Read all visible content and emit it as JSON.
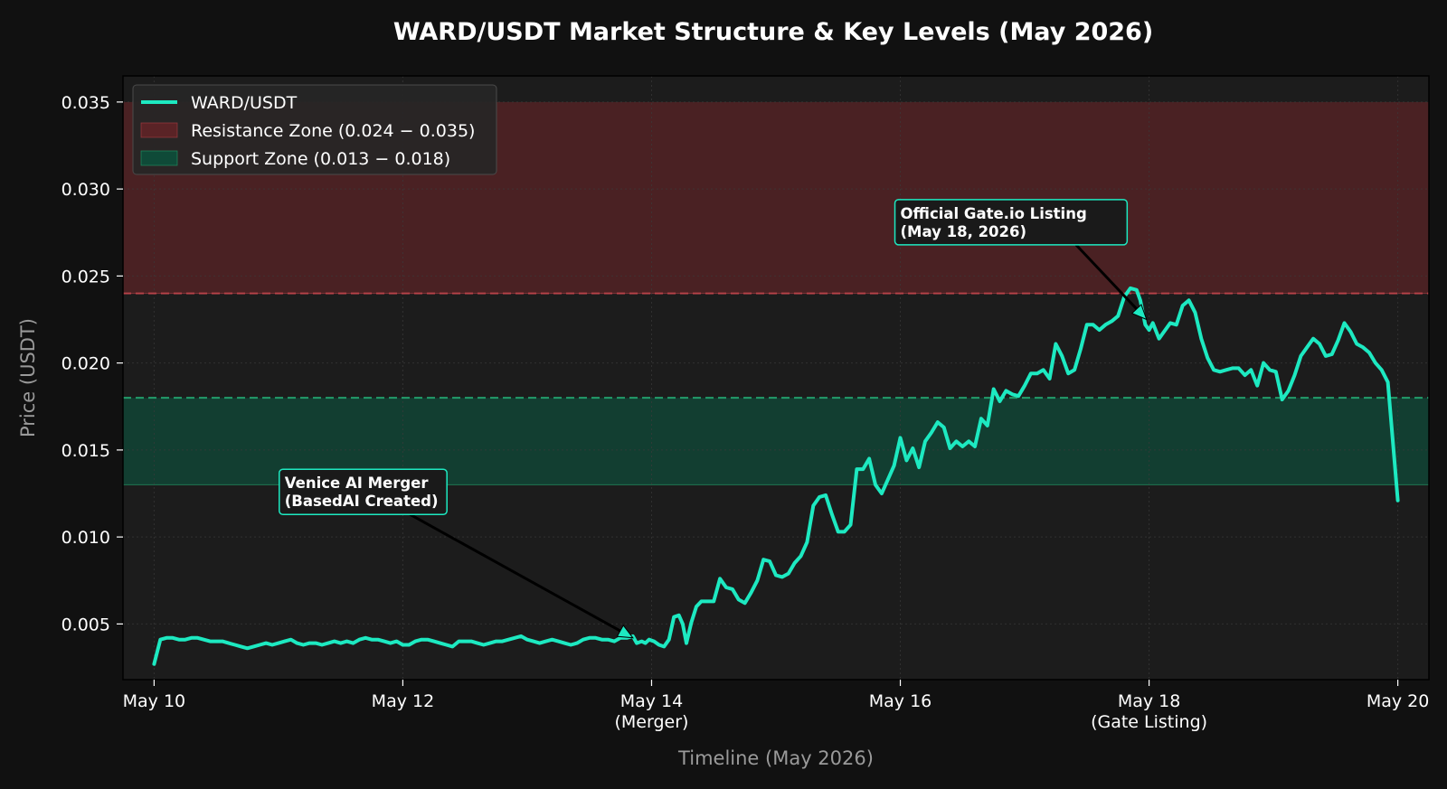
{
  "chart_data": {
    "type": "line",
    "title": "WARD/USDT Market Structure & Key Levels (May 2026)",
    "xlabel": "Timeline (May 2026)",
    "ylabel": "Price (USDT)",
    "xlim": [
      9.75,
      20.25
    ],
    "ylim": [
      0.0018,
      0.0365
    ],
    "x_ticks": [
      {
        "value": 10,
        "label": "May 10",
        "sublabel": ""
      },
      {
        "value": 12,
        "label": "May 12",
        "sublabel": ""
      },
      {
        "value": 14,
        "label": "May 14",
        "sublabel": "(Merger)"
      },
      {
        "value": 16,
        "label": "May 16",
        "sublabel": ""
      },
      {
        "value": 18,
        "label": "May 18",
        "sublabel": "(Gate Listing)"
      },
      {
        "value": 20,
        "label": "May 20",
        "sublabel": ""
      }
    ],
    "y_ticks": [
      {
        "value": 0.005,
        "label": "0.005"
      },
      {
        "value": 0.01,
        "label": "0.010"
      },
      {
        "value": 0.015,
        "label": "0.015"
      },
      {
        "value": 0.02,
        "label": "0.020"
      },
      {
        "value": 0.025,
        "label": "0.025"
      },
      {
        "value": 0.03,
        "label": "0.030"
      },
      {
        "value": 0.035,
        "label": "0.035"
      }
    ],
    "grid": true,
    "legend_position": "top-left",
    "zones": [
      {
        "name": "Resistance Zone (0.024 − 0.035)",
        "from": 0.024,
        "to": 0.035,
        "fill": "#5a2326",
        "line": "#c2454c"
      },
      {
        "name": "Support Zone (0.013 − 0.018)",
        "from": 0.013,
        "to": 0.018,
        "fill": "#0f4a38",
        "line": "#24b277"
      }
    ],
    "series": [
      {
        "name": "WARD/USDT",
        "color": "#1de9c1",
        "points": [
          [
            10.0,
            0.0027
          ],
          [
            10.05,
            0.0041
          ],
          [
            10.1,
            0.0042
          ],
          [
            10.15,
            0.0042
          ],
          [
            10.2,
            0.0041
          ],
          [
            10.25,
            0.0041
          ],
          [
            10.3,
            0.0042
          ],
          [
            10.35,
            0.0042
          ],
          [
            10.4,
            0.0041
          ],
          [
            10.45,
            0.004
          ],
          [
            10.5,
            0.004
          ],
          [
            10.55,
            0.004
          ],
          [
            10.6,
            0.0039
          ],
          [
            10.65,
            0.0038
          ],
          [
            10.7,
            0.0037
          ],
          [
            10.75,
            0.0036
          ],
          [
            10.8,
            0.0037
          ],
          [
            10.85,
            0.0038
          ],
          [
            10.9,
            0.0039
          ],
          [
            10.95,
            0.0038
          ],
          [
            11.0,
            0.0039
          ],
          [
            11.05,
            0.004
          ],
          [
            11.1,
            0.0041
          ],
          [
            11.15,
            0.0039
          ],
          [
            11.2,
            0.0038
          ],
          [
            11.25,
            0.0039
          ],
          [
            11.3,
            0.0039
          ],
          [
            11.35,
            0.0038
          ],
          [
            11.4,
            0.0039
          ],
          [
            11.45,
            0.004
          ],
          [
            11.5,
            0.0039
          ],
          [
            11.55,
            0.004
          ],
          [
            11.6,
            0.0039
          ],
          [
            11.65,
            0.0041
          ],
          [
            11.7,
            0.0042
          ],
          [
            11.75,
            0.0041
          ],
          [
            11.8,
            0.0041
          ],
          [
            11.85,
            0.004
          ],
          [
            11.9,
            0.0039
          ],
          [
            11.95,
            0.004
          ],
          [
            12.0,
            0.0038
          ],
          [
            12.05,
            0.0038
          ],
          [
            12.1,
            0.004
          ],
          [
            12.15,
            0.0041
          ],
          [
            12.2,
            0.0041
          ],
          [
            12.25,
            0.004
          ],
          [
            12.3,
            0.0039
          ],
          [
            12.35,
            0.0038
          ],
          [
            12.4,
            0.0037
          ],
          [
            12.45,
            0.004
          ],
          [
            12.5,
            0.004
          ],
          [
            12.55,
            0.004
          ],
          [
            12.6,
            0.0039
          ],
          [
            12.65,
            0.0038
          ],
          [
            12.7,
            0.0039
          ],
          [
            12.75,
            0.004
          ],
          [
            12.8,
            0.004
          ],
          [
            12.85,
            0.0041
          ],
          [
            12.9,
            0.0042
          ],
          [
            12.95,
            0.0043
          ],
          [
            13.0,
            0.0041
          ],
          [
            13.05,
            0.004
          ],
          [
            13.1,
            0.0039
          ],
          [
            13.15,
            0.004
          ],
          [
            13.2,
            0.0041
          ],
          [
            13.25,
            0.004
          ],
          [
            13.3,
            0.0039
          ],
          [
            13.35,
            0.0038
          ],
          [
            13.4,
            0.0039
          ],
          [
            13.45,
            0.0041
          ],
          [
            13.5,
            0.0042
          ],
          [
            13.55,
            0.0042
          ],
          [
            13.6,
            0.0041
          ],
          [
            13.65,
            0.0041
          ],
          [
            13.7,
            0.004
          ],
          [
            13.75,
            0.0042
          ],
          [
            13.8,
            0.0042
          ],
          [
            13.85,
            0.0043
          ],
          [
            13.88,
            0.0039
          ],
          [
            13.92,
            0.004
          ],
          [
            13.95,
            0.0039
          ],
          [
            13.98,
            0.0041
          ],
          [
            14.02,
            0.004
          ],
          [
            14.06,
            0.0038
          ],
          [
            14.1,
            0.0037
          ],
          [
            14.14,
            0.0041
          ],
          [
            14.18,
            0.0054
          ],
          [
            14.22,
            0.0055
          ],
          [
            14.25,
            0.005
          ],
          [
            14.28,
            0.0039
          ],
          [
            14.32,
            0.0051
          ],
          [
            14.36,
            0.006
          ],
          [
            14.4,
            0.0063
          ],
          [
            14.45,
            0.0063
          ],
          [
            14.5,
            0.0063
          ],
          [
            14.55,
            0.0076
          ],
          [
            14.6,
            0.0071
          ],
          [
            14.65,
            0.007
          ],
          [
            14.7,
            0.0064
          ],
          [
            14.75,
            0.0062
          ],
          [
            14.8,
            0.0068
          ],
          [
            14.85,
            0.0075
          ],
          [
            14.9,
            0.0087
          ],
          [
            14.95,
            0.0086
          ],
          [
            15.0,
            0.0078
          ],
          [
            15.05,
            0.0077
          ],
          [
            15.1,
            0.0079
          ],
          [
            15.15,
            0.0085
          ],
          [
            15.2,
            0.0089
          ],
          [
            15.25,
            0.0097
          ],
          [
            15.3,
            0.0118
          ],
          [
            15.35,
            0.0123
          ],
          [
            15.4,
            0.0124
          ],
          [
            15.45,
            0.0113
          ],
          [
            15.5,
            0.0103
          ],
          [
            15.55,
            0.0103
          ],
          [
            15.6,
            0.0107
          ],
          [
            15.65,
            0.0139
          ],
          [
            15.7,
            0.0139
          ],
          [
            15.75,
            0.0145
          ],
          [
            15.8,
            0.013
          ],
          [
            15.85,
            0.0125
          ],
          [
            15.9,
            0.0133
          ],
          [
            15.95,
            0.0141
          ],
          [
            16.0,
            0.0157
          ],
          [
            16.05,
            0.0144
          ],
          [
            16.1,
            0.0151
          ],
          [
            16.15,
            0.014
          ],
          [
            16.2,
            0.0155
          ],
          [
            16.25,
            0.016
          ],
          [
            16.3,
            0.0166
          ],
          [
            16.35,
            0.0163
          ],
          [
            16.4,
            0.0151
          ],
          [
            16.45,
            0.0155
          ],
          [
            16.5,
            0.0152
          ],
          [
            16.55,
            0.0155
          ],
          [
            16.6,
            0.0152
          ],
          [
            16.65,
            0.0168
          ],
          [
            16.7,
            0.0164
          ],
          [
            16.75,
            0.0185
          ],
          [
            16.8,
            0.0178
          ],
          [
            16.85,
            0.0184
          ],
          [
            16.9,
            0.0182
          ],
          [
            16.95,
            0.0181
          ],
          [
            17.0,
            0.0187
          ],
          [
            17.05,
            0.0194
          ],
          [
            17.1,
            0.0194
          ],
          [
            17.15,
            0.0196
          ],
          [
            17.2,
            0.0191
          ],
          [
            17.25,
            0.0211
          ],
          [
            17.3,
            0.0204
          ],
          [
            17.35,
            0.0194
          ],
          [
            17.4,
            0.0196
          ],
          [
            17.45,
            0.0208
          ],
          [
            17.5,
            0.0222
          ],
          [
            17.55,
            0.0222
          ],
          [
            17.6,
            0.0219
          ],
          [
            17.65,
            0.0222
          ],
          [
            17.7,
            0.0224
          ],
          [
            17.75,
            0.0227
          ],
          [
            17.8,
            0.0238
          ],
          [
            17.85,
            0.0243
          ],
          [
            17.9,
            0.0242
          ],
          [
            17.93,
            0.0236
          ],
          [
            17.97,
            0.0222
          ],
          [
            18.0,
            0.0219
          ],
          [
            18.03,
            0.0223
          ],
          [
            18.08,
            0.0214
          ],
          [
            18.12,
            0.0218
          ],
          [
            18.17,
            0.0223
          ],
          [
            18.22,
            0.0222
          ],
          [
            18.27,
            0.0233
          ],
          [
            18.32,
            0.0236
          ],
          [
            18.37,
            0.0229
          ],
          [
            18.42,
            0.0214
          ],
          [
            18.47,
            0.0203
          ],
          [
            18.52,
            0.0196
          ],
          [
            18.57,
            0.0195
          ],
          [
            18.62,
            0.0196
          ],
          [
            18.67,
            0.0197
          ],
          [
            18.72,
            0.0197
          ],
          [
            18.77,
            0.0193
          ],
          [
            18.82,
            0.0196
          ],
          [
            18.87,
            0.0187
          ],
          [
            18.92,
            0.02
          ],
          [
            18.97,
            0.0196
          ],
          [
            19.02,
            0.0195
          ],
          [
            19.07,
            0.0179
          ],
          [
            19.12,
            0.0184
          ],
          [
            19.17,
            0.0193
          ],
          [
            19.22,
            0.0204
          ],
          [
            19.27,
            0.0209
          ],
          [
            19.32,
            0.0214
          ],
          [
            19.37,
            0.0211
          ],
          [
            19.42,
            0.0204
          ],
          [
            19.47,
            0.0205
          ],
          [
            19.52,
            0.0213
          ],
          [
            19.57,
            0.0223
          ],
          [
            19.62,
            0.0218
          ],
          [
            19.67,
            0.0211
          ],
          [
            19.72,
            0.0209
          ],
          [
            19.77,
            0.0206
          ],
          [
            19.82,
            0.02
          ],
          [
            19.87,
            0.0196
          ],
          [
            19.92,
            0.0189
          ],
          [
            20.0,
            0.0121
          ]
        ]
      }
    ],
    "annotations": [
      {
        "lines": [
          "Venice AI Merger",
          "(BasedAI Created)"
        ],
        "point": [
          13.85,
          0.0042
        ],
        "text_anchor": [
          11.05,
          0.0128
        ],
        "border": "#1de9c1"
      },
      {
        "lines": [
          "Official Gate.io Listing",
          "(May 18, 2026)"
        ],
        "point": [
          17.98,
          0.0225
        ],
        "text_anchor": [
          16.0,
          0.0283
        ],
        "border": "#1de9c1"
      }
    ]
  }
}
